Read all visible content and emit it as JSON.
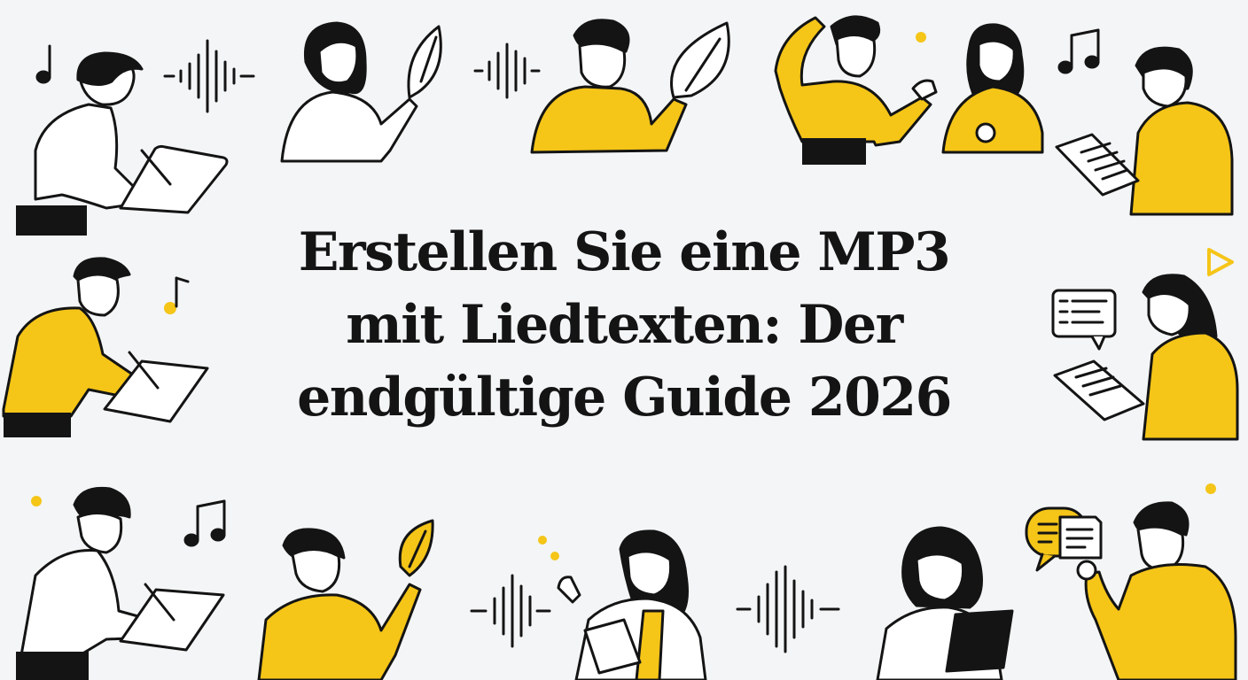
{
  "title": {
    "line1": "Erstellen Sie eine MP3",
    "line2": "mit Liedtexten: Der",
    "line3": "endgültige Guide 2026"
  },
  "colors": {
    "background": "#f3f5f6",
    "accent": "#f5c518",
    "ink": "#141414"
  },
  "icons": [
    "music-note-icon",
    "sound-wave-icon",
    "leaf-icon",
    "tablet-icon",
    "document-icon",
    "chat-bubble-icon",
    "play-triangle-icon"
  ]
}
